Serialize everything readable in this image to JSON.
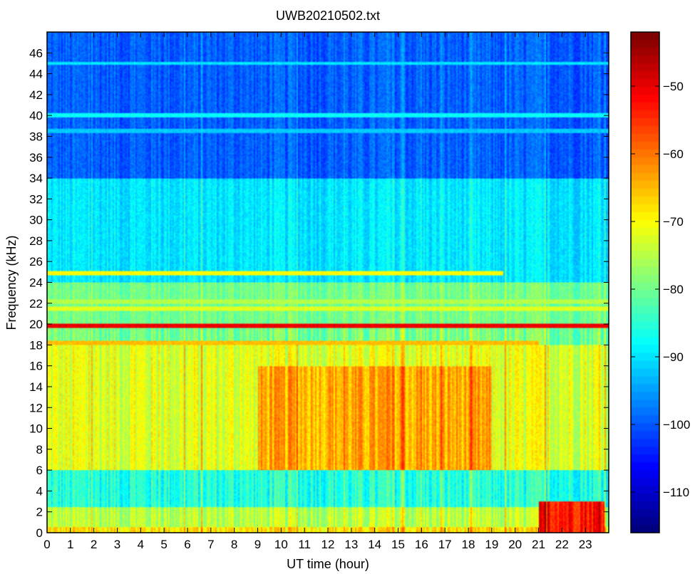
{
  "chart_data": {
    "type": "heatmap",
    "title": "UWB20210502.txt",
    "xlabel": "UT time (hour)",
    "ylabel": "Frequency (kHz)",
    "xlim": [
      0,
      24
    ],
    "ylim": [
      0,
      48
    ],
    "xticks": [
      0,
      1,
      2,
      3,
      4,
      5,
      6,
      7,
      8,
      9,
      10,
      11,
      12,
      13,
      14,
      15,
      16,
      17,
      18,
      19,
      20,
      21,
      22,
      23
    ],
    "yticks": [
      0,
      2,
      4,
      6,
      8,
      10,
      12,
      14,
      16,
      18,
      20,
      22,
      24,
      26,
      28,
      30,
      32,
      34,
      36,
      38,
      40,
      42,
      44,
      46
    ],
    "colorbar": {
      "colormap": "jet",
      "range": [
        -116,
        -42
      ],
      "ticks": [
        -110,
        -100,
        -90,
        -80,
        -70,
        -60,
        -50
      ],
      "tick_labels": [
        "−110",
        "−100",
        "−90",
        "−80",
        "−70",
        "−60",
        "−50"
      ]
    },
    "grid": false,
    "features": {
      "background_levels": [
        {
          "freq_range_khz": [
            0,
            0.5
          ],
          "level_db": -68
        },
        {
          "freq_range_khz": [
            0.5,
            2.5
          ],
          "level_db": -75
        },
        {
          "freq_range_khz": [
            2.5,
            6
          ],
          "level_db": -86
        },
        {
          "freq_range_khz": [
            6,
            18
          ],
          "level_db": -72
        },
        {
          "freq_range_khz": [
            18,
            24
          ],
          "level_db": -80
        },
        {
          "freq_range_khz": [
            24,
            34
          ],
          "level_db": -90
        },
        {
          "freq_range_khz": [
            34,
            48
          ],
          "level_db": -100
        }
      ],
      "narrowband_lines": [
        {
          "freq_khz": 19.8,
          "level_db": -50,
          "hours": [
            0,
            24
          ]
        },
        {
          "freq_khz": 18.2,
          "level_db": -65,
          "hours": [
            0,
            21
          ]
        },
        {
          "freq_khz": 21.5,
          "level_db": -72,
          "hours": [
            0,
            24
          ]
        },
        {
          "freq_khz": 22.2,
          "level_db": -75,
          "hours": [
            0,
            24
          ]
        },
        {
          "freq_khz": 24.9,
          "level_db": -70,
          "hours": [
            0,
            19.5
          ]
        },
        {
          "freq_khz": 40.0,
          "level_db": -88,
          "hours": [
            0,
            24
          ]
        },
        {
          "freq_khz": 45.0,
          "level_db": -90,
          "hours": [
            0,
            24
          ]
        },
        {
          "freq_khz": 38.5,
          "level_db": -92,
          "hours": [
            0,
            24
          ]
        }
      ],
      "broadband_enhancement": [
        {
          "hours": [
            9,
            19
          ],
          "freq_range_khz": [
            6,
            16
          ],
          "level_db": -64
        },
        {
          "hours": [
            21,
            23.8
          ],
          "freq_range_khz": [
            0,
            3
          ],
          "level_db": -52
        }
      ]
    }
  }
}
